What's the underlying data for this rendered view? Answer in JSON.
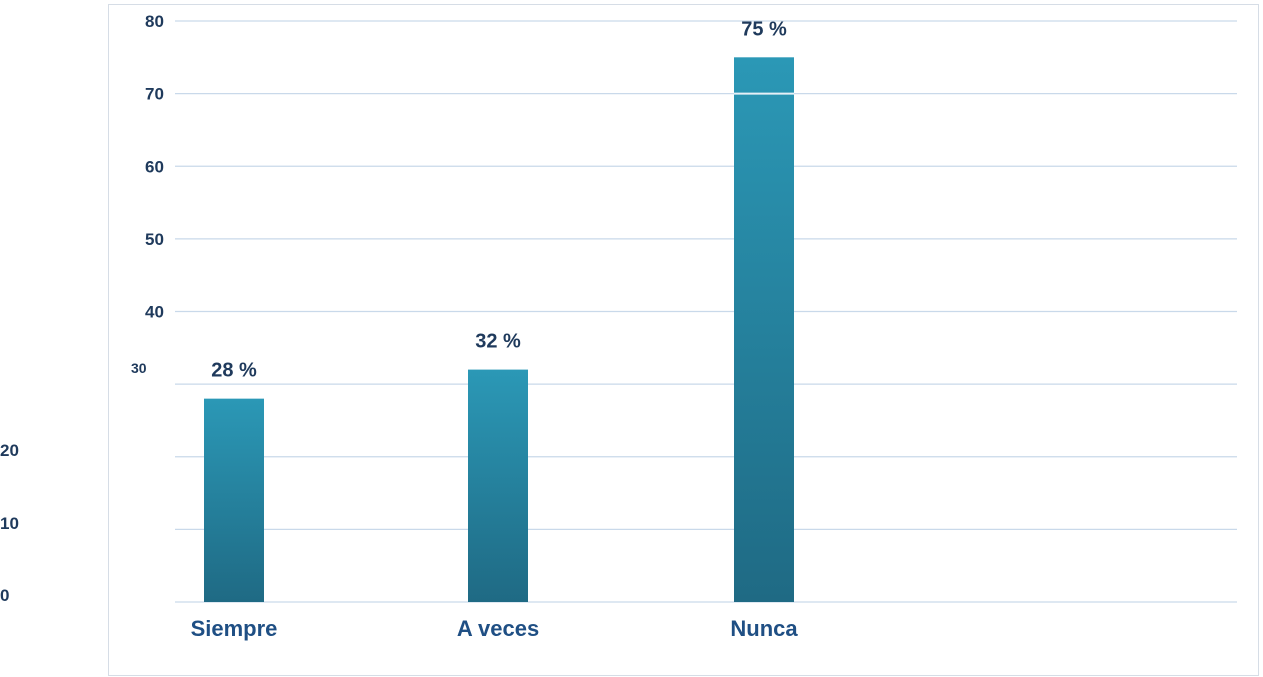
{
  "chart_data": {
    "type": "bar",
    "title": "",
    "xlabel": "",
    "ylabel": "",
    "categories": [
      "Siempre",
      "A veces",
      "Nunca"
    ],
    "values": [
      28,
      32,
      75
    ],
    "data_labels": [
      "28 %",
      "32 %",
      "75 %"
    ],
    "ylim": [
      0,
      80
    ],
    "y_ticks": [
      0,
      10,
      20,
      30,
      40,
      50,
      60,
      70,
      80
    ],
    "y_tick_labels": [
      "0",
      "10",
      "20",
      "30",
      "40",
      "50",
      "60",
      "70",
      "80"
    ],
    "grid": true,
    "legend": "none",
    "colors": {
      "bar_top": "#2b98b6",
      "bar_bottom": "#1f6a84",
      "gridline": "#c9d9ea",
      "text": "#1f3a5c",
      "category_text": "#1f4f84"
    }
  }
}
